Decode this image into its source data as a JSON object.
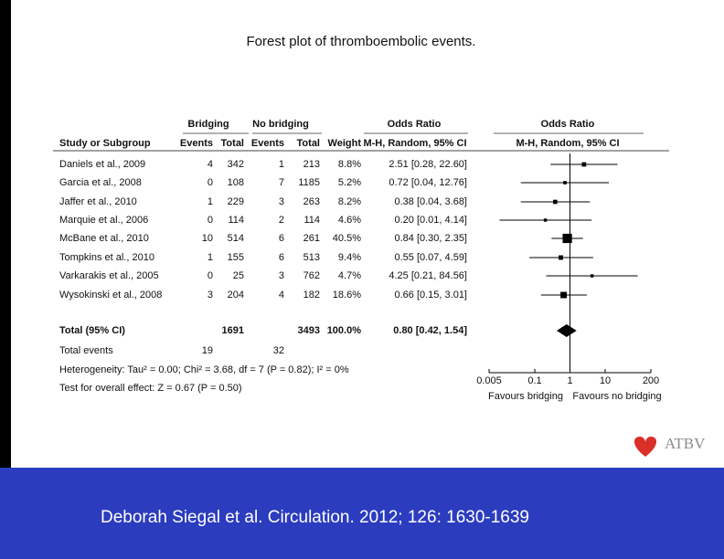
{
  "title": "Forest plot of thromboembolic events.",
  "footer": "Deborah Siegal et al. Circulation. 2012; 126: 1630-1639",
  "logo": "ATBV",
  "chart_data": {
    "type": "forest",
    "group_headers": [
      "Bridging",
      "No bridging",
      "Odds Ratio",
      "Odds Ratio"
    ],
    "columns": [
      "Study or Subgroup",
      "Events",
      "Total",
      "Events",
      "Total",
      "Weight",
      "M-H, Random, 95% CI",
      "M-H, Random, 95% CI"
    ],
    "studies": [
      {
        "name": "Daniels et al., 2009",
        "events1": 4,
        "total1": 342,
        "events2": 1,
        "total2": 213,
        "weight": 8.8,
        "weight_label": "8.8%",
        "or": 2.51,
        "lo": 0.28,
        "hi": 22.6,
        "ci_label": "2.51 [0.28, 22.60]"
      },
      {
        "name": "Garcia et al., 2008",
        "events1": 0,
        "total1": 108,
        "events2": 7,
        "total2": 1185,
        "weight": 5.2,
        "weight_label": "5.2%",
        "or": 0.72,
        "lo": 0.04,
        "hi": 12.76,
        "ci_label": "0.72 [0.04, 12.76]"
      },
      {
        "name": "Jaffer et al., 2010",
        "events1": 1,
        "total1": 229,
        "events2": 3,
        "total2": 263,
        "weight": 8.2,
        "weight_label": "8.2%",
        "or": 0.38,
        "lo": 0.04,
        "hi": 3.68,
        "ci_label": "0.38 [0.04, 3.68]"
      },
      {
        "name": "Marquie et al., 2006",
        "events1": 0,
        "total1": 114,
        "events2": 2,
        "total2": 114,
        "weight": 4.6,
        "weight_label": "4.6%",
        "or": 0.2,
        "lo": 0.01,
        "hi": 4.14,
        "ci_label": "0.20 [0.01, 4.14]"
      },
      {
        "name": "McBane et al., 2010",
        "events1": 10,
        "total1": 514,
        "events2": 6,
        "total2": 261,
        "weight": 40.5,
        "weight_label": "40.5%",
        "or": 0.84,
        "lo": 0.3,
        "hi": 2.35,
        "ci_label": "0.84 [0.30, 2.35]"
      },
      {
        "name": "Tompkins et al., 2010",
        "events1": 1,
        "total1": 155,
        "events2": 6,
        "total2": 513,
        "weight": 9.4,
        "weight_label": "9.4%",
        "or": 0.55,
        "lo": 0.07,
        "hi": 4.59,
        "ci_label": "0.55 [0.07, 4.59]"
      },
      {
        "name": "Varkarakis et al., 2005",
        "events1": 0,
        "total1": 25,
        "events2": 3,
        "total2": 762,
        "weight": 4.7,
        "weight_label": "4.7%",
        "or": 4.25,
        "lo": 0.21,
        "hi": 84.56,
        "ci_label": "4.25 [0.21, 84.56]"
      },
      {
        "name": "Wysokinski et al., 2008",
        "events1": 3,
        "total1": 204,
        "events2": 4,
        "total2": 182,
        "weight": 18.6,
        "weight_label": "18.6%",
        "or": 0.66,
        "lo": 0.15,
        "hi": 3.01,
        "ci_label": "0.66 [0.15, 3.01]"
      }
    ],
    "total": {
      "name": "Total (95% CI)",
      "total1": 1691,
      "total2": 3493,
      "weight": 100,
      "weight_label": "100.0%",
      "or": 0.8,
      "lo": 0.42,
      "hi": 1.54,
      "ci_label": "0.80 [0.42, 1.54]"
    },
    "total_events": {
      "name": "Total events",
      "events1": 19,
      "events2": 32
    },
    "heterogeneity": "Heterogeneity: Tau² = 0.00; Chi² = 3.68, df = 7 (P = 0.82); I² = 0%",
    "overall_effect": "Test for overall effect: Z = 0.67 (P = 0.50)",
    "log_x": true,
    "xlim": [
      0.005,
      200
    ],
    "xticks": [
      0.005,
      0.1,
      1,
      10,
      200
    ],
    "x_labels": [
      "Favours bridging",
      "Favours no bridging"
    ],
    "color": "#000000"
  }
}
